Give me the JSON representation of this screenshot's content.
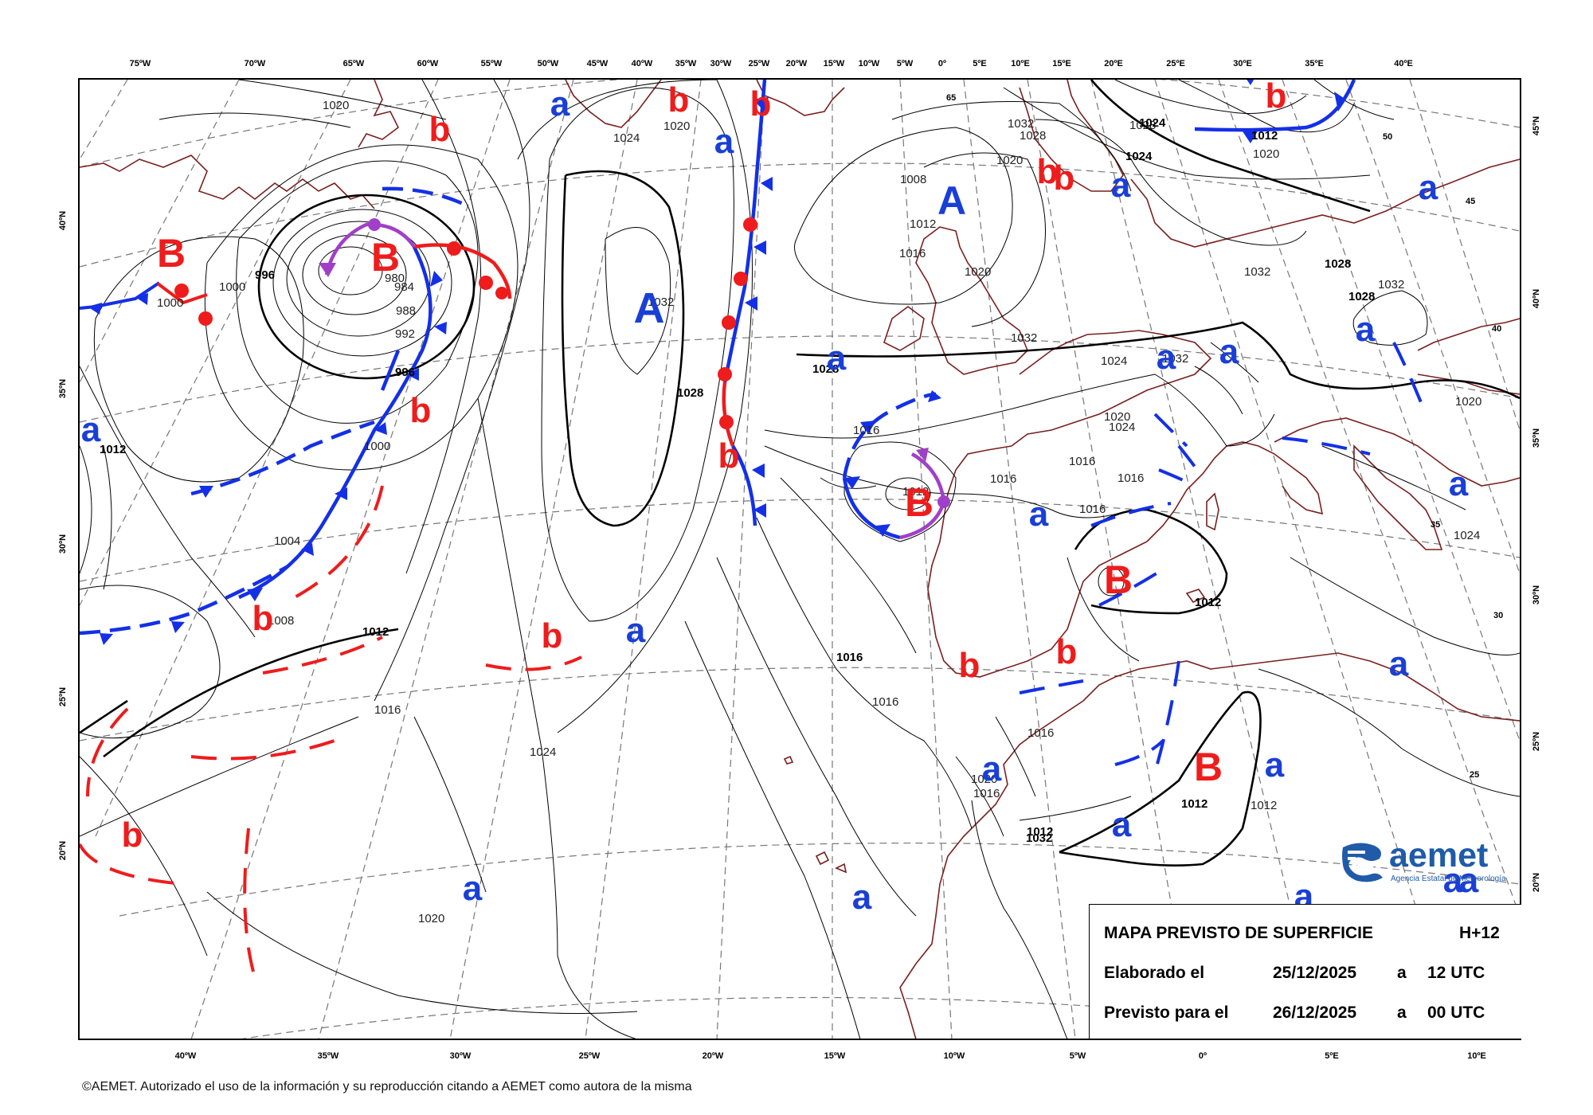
{
  "map": {
    "title": "MAPA PREVISTO DE SUPERFICIE",
    "lead_time": "H+12",
    "elaborated_label": "Elaborado el",
    "elaborated_date": "25/12/2025",
    "elaborated_at": "a",
    "elaborated_time": "12 UTC",
    "valid_label": "Previsto para el",
    "valid_date": "26/12/2025",
    "valid_at": "a",
    "valid_time": "00 UTC"
  },
  "branding": {
    "logo_text": "aemet",
    "logo_subtitle": "Agencia Estatal de Meteorología",
    "brand_color": "#1f5ba8"
  },
  "copyright": "©AEMET. Autorizado el uso de la información y su reproducción citando a AEMET como autora de la misma",
  "colors": {
    "high": "#1a3fd6",
    "low": "#ee1c1c",
    "cold_front": "#1430e6",
    "warm_front": "#e81c1c",
    "occluded_front": "#a040c8",
    "coastline": "#7a1f1f"
  },
  "axes": {
    "top_longitudes": [
      "75ºW",
      "70ºW",
      "65ºW",
      "60ºW",
      "55ºW",
      "50ºW",
      "45ºW",
      "40ºW",
      "35ºW",
      "30ºW",
      "25ºW",
      "20ºW",
      "15ºW",
      "10ºW",
      "5ºW",
      "0º",
      "5ºE",
      "10ºE",
      "15ºE",
      "20ºE",
      "25ºE",
      "30ºE",
      "35ºE",
      "40ºE"
    ],
    "bottom_longitudes": [
      "40ºW",
      "35ºW",
      "30ºW",
      "25ºW",
      "20ºW",
      "15ºW",
      "10ºW",
      "5ºW",
      "0º",
      "5ºE",
      "10ºE"
    ],
    "left_latitudes": [
      "40ºN",
      "35ºN",
      "30ºN",
      "25ºN",
      "20ºN"
    ],
    "right_latitudes": [
      "45ºN",
      "40ºN",
      "35ºN",
      "30ºN",
      "25ºN",
      "20ºN"
    ],
    "inner_lat_labels": [
      "65",
      "50",
      "45",
      "40",
      "35",
      "30",
      "25"
    ]
  },
  "pressure_systems": {
    "highs_major": [
      "A",
      "A",
      "A"
    ],
    "highs_minor": [
      "a",
      "a",
      "a",
      "a",
      "a",
      "a",
      "a",
      "a",
      "a",
      "a",
      "a",
      "a",
      "a",
      "a",
      "a",
      "a",
      "a",
      "a",
      "a",
      "a",
      "a",
      "a",
      "a"
    ],
    "lows_major": [
      "B",
      "B",
      "B",
      "B",
      "B"
    ],
    "lows_minor": [
      "b",
      "b",
      "b",
      "b",
      "b",
      "b",
      "b",
      "b",
      "b",
      "b",
      "b",
      "b",
      "b",
      "b",
      "b",
      "b"
    ]
  },
  "isobar_labels": [
    "1020",
    "1024",
    "1020",
    "1028",
    "1028",
    "1032",
    "1008",
    "1012",
    "1016",
    "996",
    "980",
    "984",
    "988",
    "992",
    "996",
    "1000",
    "1000",
    "1000",
    "1012",
    "1004",
    "1008",
    "1012",
    "1016",
    "1024",
    "1020",
    "1016",
    "1032",
    "1028",
    "1020",
    "1016",
    "1012",
    "1016",
    "1016",
    "1016",
    "1016",
    "1016",
    "1012",
    "1012",
    "1012",
    "1020",
    "1016",
    "1020",
    "1020",
    "1024",
    "1024",
    "1032",
    "1032",
    "1032",
    "1028",
    "1028",
    "1032",
    "1028",
    "1024",
    "1024",
    "1020",
    "1020",
    "1024",
    "1032",
    "1012",
    "1012",
    "1016"
  ]
}
